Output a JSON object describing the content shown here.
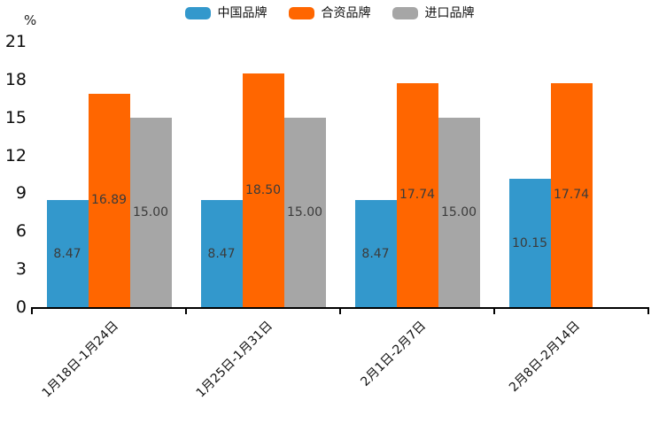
{
  "chart_data": {
    "type": "bar",
    "title": "",
    "unit_label": "%",
    "categories": [
      "1月18日-1月24日",
      "1月25日-1月31日",
      "2月1日-2月7日",
      "2月8日-2月14日"
    ],
    "series": [
      {
        "name": "中国品牌",
        "color": "#3398CC",
        "values": [
          8.47,
          8.47,
          8.47,
          10.15
        ]
      },
      {
        "name": "合资品牌",
        "color": "#FF6600",
        "values": [
          16.89,
          18.5,
          17.74,
          17.74
        ]
      },
      {
        "name": "进口品牌",
        "color": "#A6A6A6",
        "values": [
          15.0,
          15.0,
          15.0,
          null
        ]
      }
    ],
    "value_label_format": "2dp",
    "y_ticks": [
      0,
      3,
      6,
      9,
      12,
      15,
      18,
      21
    ],
    "ylim": [
      0,
      21
    ],
    "legend_position": "top-center",
    "grid": false,
    "background": "#ffffff",
    "axis_color": "#000000",
    "value_label_color": "#3b3b3b"
  }
}
